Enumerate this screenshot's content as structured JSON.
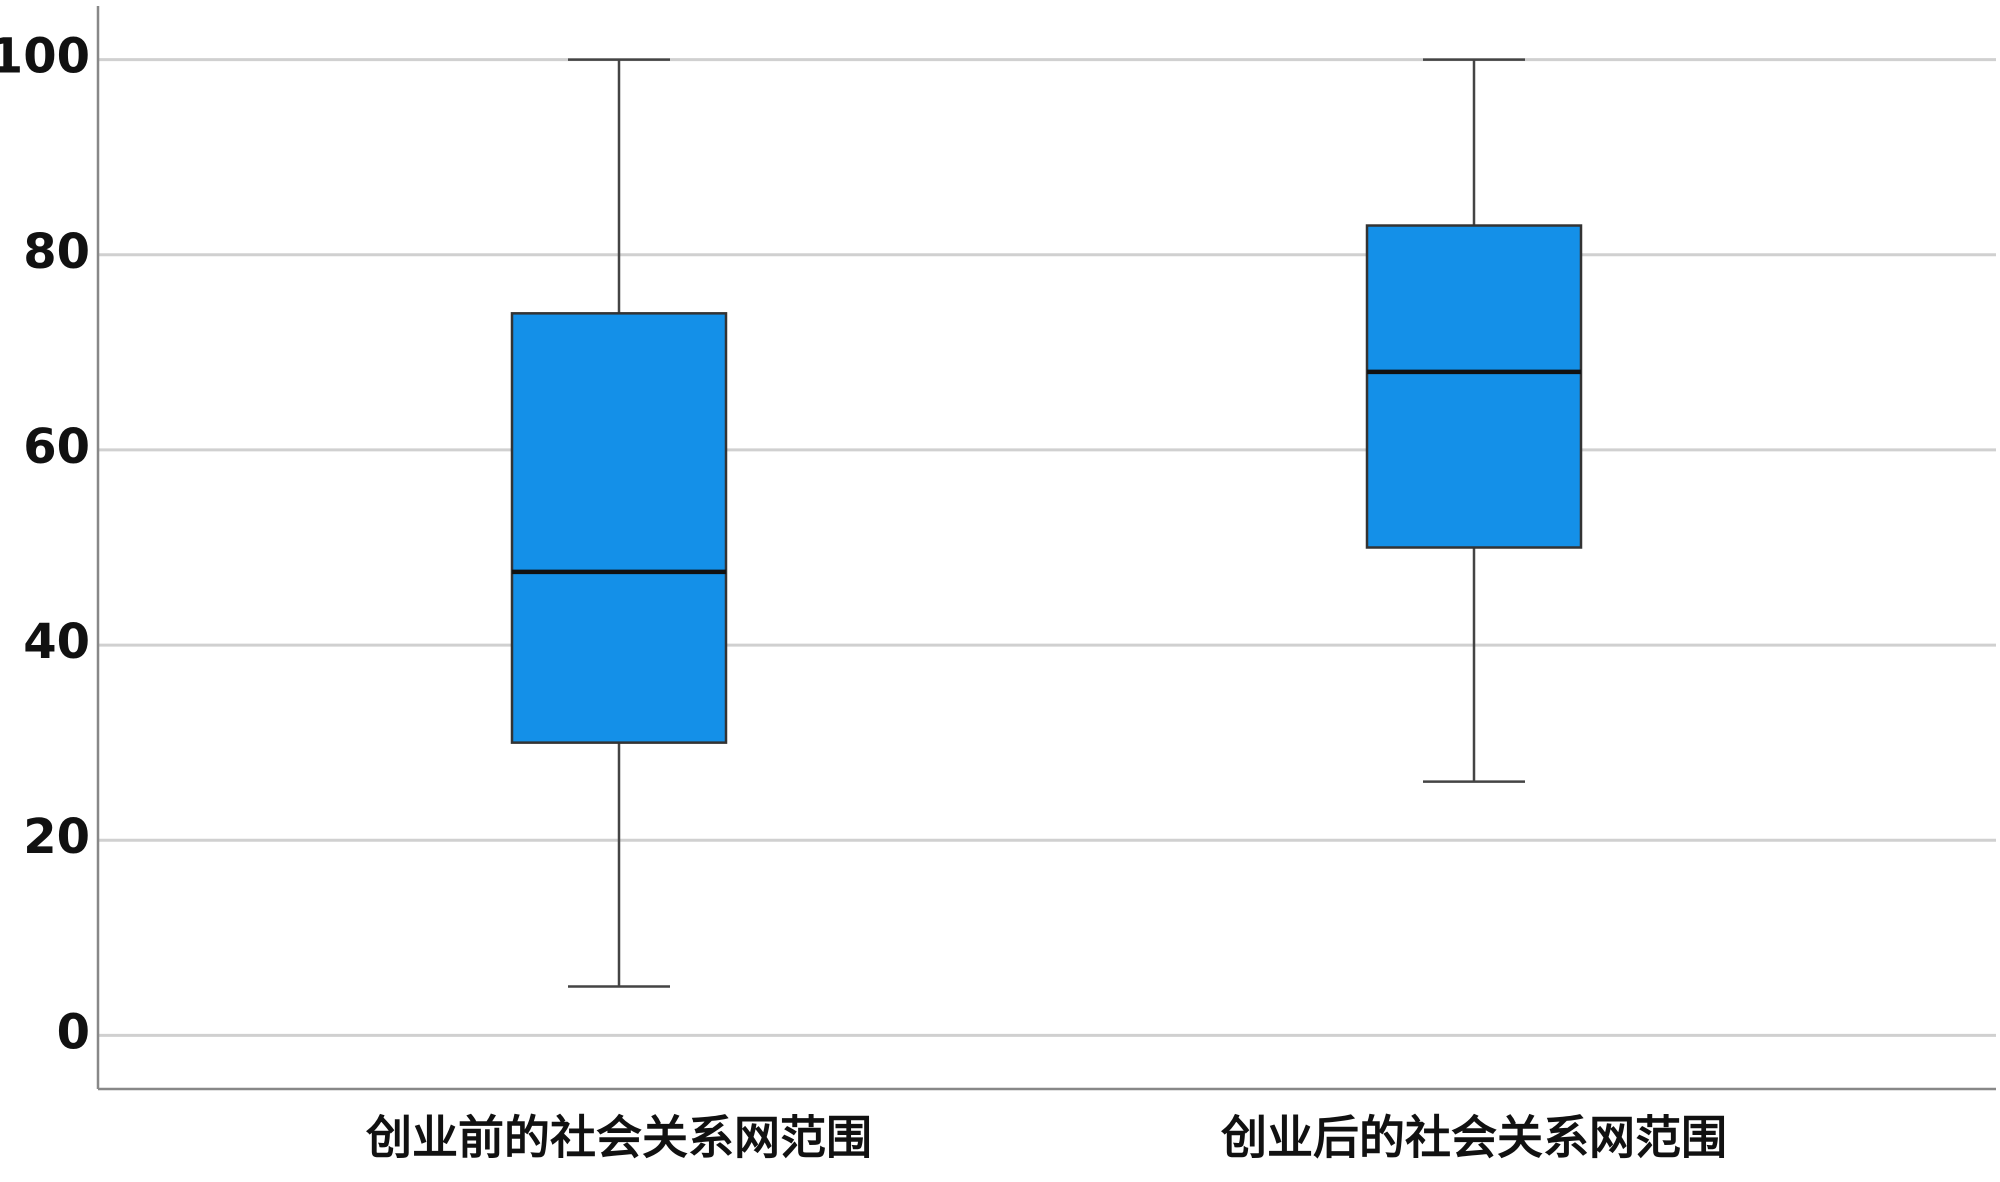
{
  "chart_data": {
    "type": "box",
    "categories": [
      "创业前的社会关系网范围",
      "创业后的社会关系网范围"
    ],
    "boxes": [
      {
        "min": 5,
        "q1": 30,
        "median": 47.5,
        "q3": 74,
        "max": 100
      },
      {
        "min": 26,
        "q1": 50,
        "median": 68,
        "q3": 83,
        "max": 100
      }
    ],
    "color": "#1490e8",
    "ylim": [
      -5.5,
      105.5
    ],
    "yticks": [
      0,
      20,
      40,
      60,
      80,
      100
    ],
    "grid": true
  }
}
